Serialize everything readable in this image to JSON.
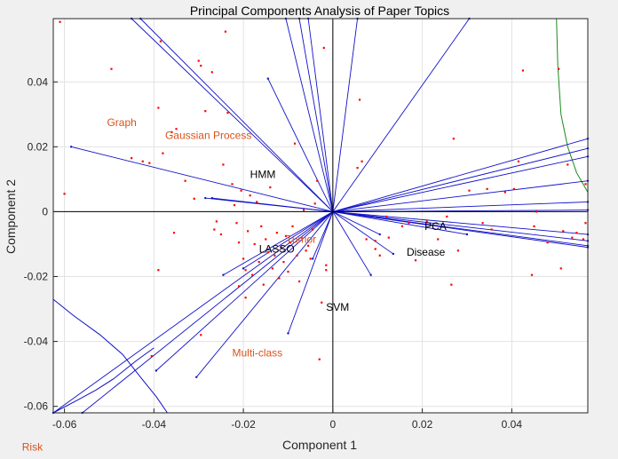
{
  "chart_data": {
    "type": "scatter",
    "title": "Principal Components Analysis of Paper Topics",
    "xlabel": "Component 1",
    "ylabel": "Component 2",
    "xlim": [
      -0.0625,
      0.057
    ],
    "ylim": [
      -0.062,
      0.0595
    ],
    "xticks": [
      -0.06,
      -0.04,
      -0.02,
      0,
      0.02,
      0.04
    ],
    "xtick_labels": [
      "-0.06",
      "-0.04",
      "-0.02",
      "0",
      "0.02",
      "0.04"
    ],
    "yticks": [
      -0.06,
      -0.04,
      -0.02,
      0,
      0.02,
      0.04
    ],
    "ytick_labels": [
      "-0.06",
      "-0.04",
      "-0.02",
      "0",
      "0.02",
      "0.04"
    ],
    "grid": true,
    "colors": {
      "vectors": "#1010c8",
      "points": "#ff0000",
      "topic_orange": "#d95319",
      "topic_black": "#000000",
      "curve_green": "#1a8a1a",
      "axes": "#000000"
    },
    "topic_labels": [
      {
        "text": "Graph",
        "x": -0.0505,
        "y": 0.0275,
        "color": "orange"
      },
      {
        "text": "Gaussian Process",
        "x": -0.0375,
        "y": 0.0235,
        "color": "orange"
      },
      {
        "text": "HMM",
        "x": -0.0185,
        "y": 0.0115,
        "color": "black"
      },
      {
        "text": "LASSO",
        "x": -0.0165,
        "y": -0.0115,
        "color": "black"
      },
      {
        "text": "Tumor",
        "x": -0.0105,
        "y": -0.0085,
        "color": "orange"
      },
      {
        "text": "PCA",
        "x": 0.0205,
        "y": -0.0045,
        "color": "black"
      },
      {
        "text": "Disease",
        "x": 0.0165,
        "y": -0.0125,
        "color": "black"
      },
      {
        "text": "SVM",
        "x": -0.0015,
        "y": -0.0295,
        "color": "black"
      },
      {
        "text": "Multi-class",
        "x": -0.0225,
        "y": -0.0435,
        "color": "orange"
      },
      {
        "text": "Risk",
        "x": -0.0695,
        "y": -0.0725,
        "color": "orange"
      }
    ],
    "vectors": [
      [
        -0.0585,
        0.02
      ],
      [
        -0.027,
        0.0042
      ],
      [
        -0.0285,
        0.0042
      ],
      [
        -0.0145,
        0.041
      ],
      [
        -0.0055,
        0.0595
      ],
      [
        -0.0075,
        0.0595
      ],
      [
        -0.0105,
        0.0595
      ],
      [
        -0.043,
        0.0595
      ],
      [
        -0.045,
        0.0595
      ],
      [
        0.0305,
        0.0595
      ],
      [
        0.0055,
        0.0595
      ],
      [
        -0.0625,
        -0.062
      ],
      [
        -0.056,
        -0.062
      ],
      [
        -0.0395,
        -0.049
      ],
      [
        -0.0305,
        -0.051
      ],
      [
        -0.0245,
        -0.0195
      ],
      [
        -0.02,
        -0.0175
      ],
      [
        -0.01,
        -0.0375
      ],
      [
        -0.0045,
        -0.0145
      ],
      [
        0.0085,
        -0.0195
      ],
      [
        0.0135,
        -0.013
      ],
      [
        0.0105,
        -0.007
      ],
      [
        0.057,
        0.0225
      ],
      [
        0.057,
        0.0195
      ],
      [
        0.057,
        0.017
      ],
      [
        0.057,
        0.0095
      ],
      [
        0.057,
        0.003
      ],
      [
        0.057,
        0.0005
      ],
      [
        0.057,
        -0.007
      ],
      [
        0.057,
        -0.009
      ],
      [
        0.057,
        -0.0105
      ],
      [
        0.057,
        -0.011
      ],
      [
        0.03,
        -0.007
      ]
    ],
    "points": [
      [
        -0.061,
        0.0585
      ],
      [
        -0.06,
        0.0055
      ],
      [
        -0.0495,
        0.044
      ],
      [
        -0.045,
        0.0165
      ],
      [
        -0.0425,
        0.0155
      ],
      [
        -0.041,
        0.015
      ],
      [
        -0.039,
        0.032
      ],
      [
        -0.0385,
        0.0525
      ],
      [
        -0.038,
        0.018
      ],
      [
        -0.036,
        0.0245
      ],
      [
        -0.035,
        0.0255
      ],
      [
        -0.0355,
        -0.0065
      ],
      [
        -0.03,
        0.0465
      ],
      [
        -0.0295,
        0.045
      ],
      [
        -0.0285,
        0.031
      ],
      [
        -0.027,
        0.043
      ],
      [
        -0.0265,
        -0.0055
      ],
      [
        -0.026,
        -0.003
      ],
      [
        -0.025,
        -0.007
      ],
      [
        -0.0245,
        0.0145
      ],
      [
        -0.024,
        0.0555
      ],
      [
        -0.0235,
        0.0305
      ],
      [
        -0.0225,
        0.0085
      ],
      [
        -0.022,
        0.002
      ],
      [
        -0.0215,
        -0.0035
      ],
      [
        -0.021,
        -0.0095
      ],
      [
        -0.0205,
        0.0065
      ],
      [
        -0.02,
        -0.0145
      ],
      [
        -0.0195,
        -0.018
      ],
      [
        -0.019,
        -0.006
      ],
      [
        -0.0185,
        0.005
      ],
      [
        -0.018,
        -0.0195
      ],
      [
        -0.0175,
        -0.01
      ],
      [
        -0.017,
        0.003
      ],
      [
        -0.0165,
        -0.0155
      ],
      [
        -0.016,
        -0.0045
      ],
      [
        -0.0155,
        -0.0225
      ],
      [
        -0.015,
        -0.0085
      ],
      [
        -0.0145,
        -0.0125
      ],
      [
        -0.014,
        0.0075
      ],
      [
        -0.0135,
        -0.0175
      ],
      [
        -0.013,
        -0.0135
      ],
      [
        -0.0125,
        -0.0065
      ],
      [
        -0.012,
        -0.0205
      ],
      [
        -0.0115,
        -0.011
      ],
      [
        -0.011,
        -0.0155
      ],
      [
        -0.0105,
        -0.0075
      ],
      [
        -0.01,
        -0.0185
      ],
      [
        -0.0095,
        -0.0095
      ],
      [
        -0.009,
        -0.0045
      ],
      [
        -0.0085,
        0.021
      ],
      [
        -0.008,
        -0.0135
      ],
      [
        -0.0075,
        -0.0215
      ],
      [
        -0.007,
        -0.008
      ],
      [
        -0.0065,
        0.0005
      ],
      [
        -0.006,
        -0.012
      ],
      [
        -0.0055,
        -0.0105
      ],
      [
        -0.005,
        -0.0145
      ],
      [
        -0.0045,
        -0.0055
      ],
      [
        -0.004,
        0.0025
      ],
      [
        -0.0035,
        0.0095
      ],
      [
        -0.003,
        -0.0455
      ],
      [
        -0.0025,
        -0.028
      ],
      [
        -0.002,
        0.0505
      ],
      [
        -0.0015,
        -0.0165
      ],
      [
        0.0055,
        0.0135
      ],
      [
        0.006,
        0.0345
      ],
      [
        0.0065,
        0.0155
      ],
      [
        0.0075,
        -0.0085
      ],
      [
        0.0095,
        -0.009
      ],
      [
        0.0105,
        -0.0135
      ],
      [
        0.012,
        -0.0015
      ],
      [
        0.0125,
        -0.008
      ],
      [
        0.0155,
        -0.0045
      ],
      [
        0.017,
        -0.0035
      ],
      [
        0.0185,
        -0.015
      ],
      [
        0.021,
        -0.003
      ],
      [
        0.0235,
        -0.0085
      ],
      [
        0.0255,
        -0.0015
      ],
      [
        0.0265,
        -0.0225
      ],
      [
        0.027,
        0.0225
      ],
      [
        0.028,
        -0.012
      ],
      [
        0.0305,
        0.0065
      ],
      [
        0.0335,
        -0.0035
      ],
      [
        0.0345,
        0.007
      ],
      [
        0.0355,
        -0.0055
      ],
      [
        0.0385,
        0.006
      ],
      [
        0.0405,
        0.007
      ],
      [
        0.0415,
        0.0155
      ],
      [
        0.0425,
        0.0435
      ],
      [
        0.0445,
        -0.0195
      ],
      [
        0.045,
        -0.0045
      ],
      [
        0.0455,
        0.0
      ],
      [
        0.048,
        -0.0095
      ],
      [
        0.0505,
        0.044
      ],
      [
        0.051,
        -0.0175
      ],
      [
        0.0515,
        -0.006
      ],
      [
        0.0525,
        0.0145
      ],
      [
        0.0535,
        -0.008
      ],
      [
        0.0545,
        -0.0065
      ],
      [
        0.056,
        -0.0085
      ],
      [
        0.0565,
        -0.0035
      ],
      [
        0.0565,
        0.0085
      ],
      [
        -0.039,
        -0.018
      ],
      [
        -0.0405,
        -0.0445
      ],
      [
        -0.0295,
        -0.038
      ],
      [
        -0.0195,
        -0.0265
      ],
      [
        -0.021,
        -0.023
      ],
      [
        -0.033,
        0.0095
      ],
      [
        -0.031,
        0.004
      ],
      [
        -0.0015,
        -0.018
      ],
      [
        0.0095,
        -0.0115
      ]
    ],
    "curves": [
      {
        "color": "green",
        "points": [
          [
            0.05,
            0.0595
          ],
          [
            0.0503,
            0.045
          ],
          [
            0.051,
            0.03
          ],
          [
            0.0525,
            0.02
          ],
          [
            0.0545,
            0.012
          ],
          [
            0.057,
            0.006
          ]
        ]
      },
      {
        "color": "blue",
        "points": [
          [
            -0.0625,
            -0.027
          ],
          [
            -0.058,
            -0.032
          ],
          [
            -0.052,
            -0.038
          ],
          [
            -0.047,
            -0.044
          ],
          [
            -0.043,
            -0.051
          ],
          [
            -0.0395,
            -0.057
          ],
          [
            -0.037,
            -0.062
          ]
        ]
      },
      {
        "color": "blue",
        "points": [
          [
            -0.0625,
            -0.062
          ],
          [
            -0.057,
            -0.058
          ],
          [
            -0.053,
            -0.055
          ],
          [
            -0.049,
            -0.0515
          ],
          [
            -0.044,
            -0.046
          ],
          [
            -0.04,
            -0.042
          ]
        ]
      }
    ]
  }
}
